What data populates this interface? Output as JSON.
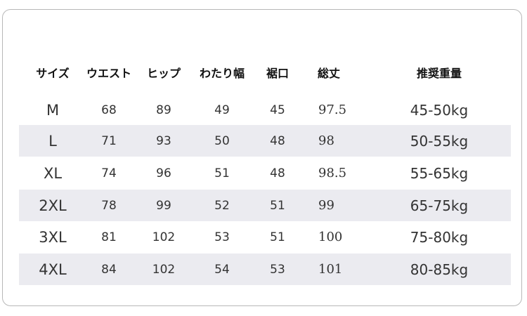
{
  "headers": [
    "サイズ",
    "ウエスト",
    "ヒップ",
    "わたり幅",
    "裾口",
    "総丈",
    "推奨重量"
  ],
  "rows": [
    [
      "M",
      "68",
      "89",
      "49",
      "45",
      "97.5",
      "45-50kg"
    ],
    [
      "L",
      "71",
      "93",
      "50",
      "48",
      "98",
      "50-55kg"
    ],
    [
      "XL",
      "74",
      "96",
      "51",
      "48",
      "98.5",
      "55-65kg"
    ],
    [
      "2XL",
      "78",
      "99",
      "52",
      "51",
      "99",
      "65-75kg"
    ],
    [
      "3XL",
      "81",
      "102",
      "53",
      "51",
      "100",
      "75-80kg"
    ],
    [
      "4XL",
      "84",
      "102",
      "54",
      "53",
      "101",
      "80-85kg"
    ]
  ],
  "colors": {
    "shaded_row": "#ebebf0",
    "border": "#b8b8b8"
  }
}
